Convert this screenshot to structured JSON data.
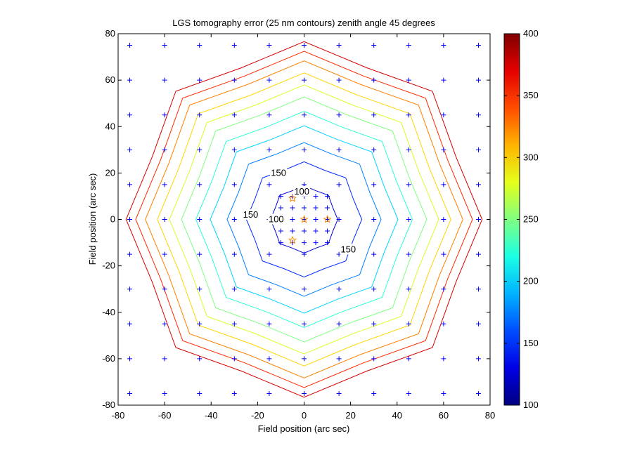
{
  "chart_data": {
    "type": "contour",
    "title": "LGS tomography error (25 nm contours) zenith angle 45 degrees",
    "xlabel": "Field position (arc sec)",
    "ylabel": "Field position (arc sec)",
    "xlim": [
      -80,
      80
    ],
    "ylim": [
      -80,
      80
    ],
    "x_ticks": [
      -80,
      -60,
      -40,
      -20,
      0,
      20,
      40,
      60,
      80
    ],
    "y_ticks": [
      -80,
      -60,
      -40,
      -20,
      0,
      20,
      40,
      60,
      80
    ],
    "grid": false,
    "contour_levels": [
      125,
      150,
      175,
      200,
      225,
      250,
      275,
      300,
      325,
      350,
      375
    ],
    "contour_radii": [
      14,
      24,
      32,
      39,
      45,
      51,
      56,
      61,
      66,
      70,
      74
    ],
    "contour_labels": [
      {
        "text": "150",
        "x": -11,
        "y": 20
      },
      {
        "text": "100",
        "x": -1,
        "y": 12
      },
      {
        "text": "150",
        "x": -23,
        "y": 2
      },
      {
        "text": "100",
        "x": -12,
        "y": 0
      },
      {
        "text": "150",
        "x": 19,
        "y": -13
      }
    ],
    "colorbar": {
      "min": 100,
      "max": 400,
      "ticks": [
        100,
        150,
        200,
        250,
        300,
        350,
        400
      ]
    },
    "marker_color": "#0000ff",
    "star_color": "#ff8c00",
    "grid_points": {
      "x": [
        -75,
        -60,
        -45,
        -30,
        -15,
        0,
        15,
        30,
        45,
        60,
        75
      ],
      "y": [
        -75,
        -60,
        -45,
        -30,
        -15,
        0,
        15,
        30,
        45,
        60,
        75
      ]
    },
    "inner_points": {
      "x": [
        -10,
        -5,
        0,
        5,
        10
      ],
      "y": [
        -10,
        -5,
        0,
        5,
        10
      ]
    },
    "stars": [
      {
        "x": -5,
        "y": 9
      },
      {
        "x": 0,
        "y": 0
      },
      {
        "x": 10,
        "y": 0
      },
      {
        "x": -5,
        "y": -9
      }
    ]
  }
}
